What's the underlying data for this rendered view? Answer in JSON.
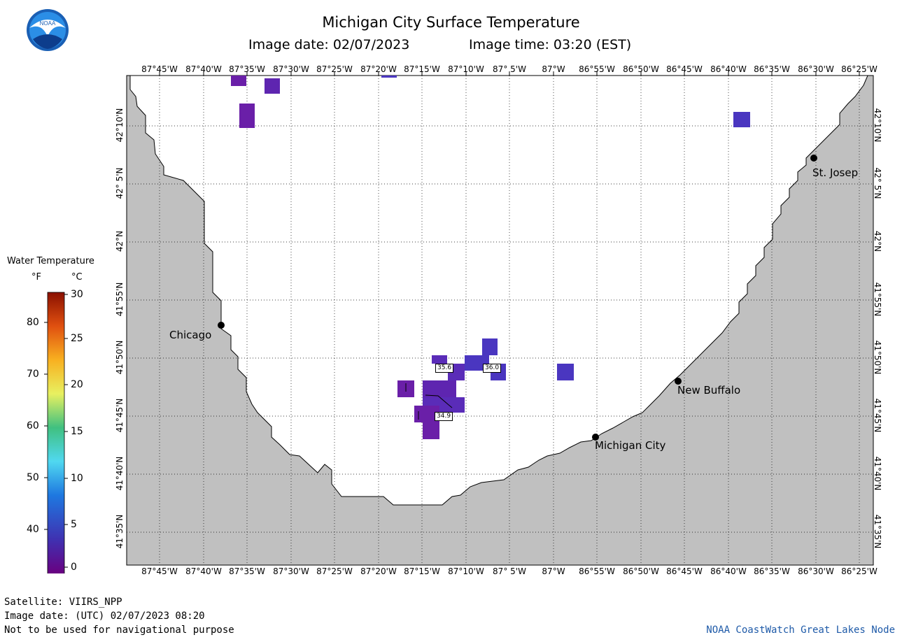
{
  "header": {
    "title": "Michigan City Surface Temperature",
    "image_date_label": "Image date: 02/07/2023",
    "image_time_label": "Image time: 03:20 (EST)"
  },
  "legend": {
    "title": "Water Temperature",
    "unit_f": "°F",
    "unit_c": "°C",
    "f_labels": [
      "80",
      "70",
      "60",
      "50",
      "40"
    ],
    "c_labels": [
      "30",
      "25",
      "20",
      "15",
      "10",
      "5",
      "0"
    ]
  },
  "map": {
    "lon_labels": [
      "87°45'W",
      "87°40'W",
      "87°35'W",
      "87°30'W",
      "87°25'W",
      "87°20'W",
      "87°15'W",
      "87°10'W",
      "87° 5'W",
      "87°W",
      "86°55'W",
      "86°50'W",
      "86°45'W",
      "86°40'W",
      "86°35'W",
      "86°30'W",
      "86°25'W"
    ],
    "lat_labels": [
      "42°10'N",
      "42° 5'N",
      "42°N",
      "41°55'N",
      "41°50'N",
      "41°45'N",
      "41°40'N",
      "41°35'N"
    ],
    "cities": {
      "chicago": "Chicago",
      "st_joseph": "St. Josep",
      "new_buffalo": "New Buffalo",
      "michigan_city": "Michigan City"
    },
    "buoy_values": {
      "a": "35.6",
      "b": "36.0",
      "c": "34.9"
    },
    "colors": {
      "land": "#c0c0c0",
      "water": "#ffffff",
      "sst_cold_purple": "#6a1fa8",
      "sst_violet": "#5a2cb8",
      "sst_blue_violet": "#4a36c0"
    }
  },
  "footer": {
    "satellite": "Satellite: VIIRS_NPP",
    "utc_date": "Image date: (UTC) 02/07/2023  08:20",
    "disclaimer": "Not to be used for navigational purpose",
    "credit": "NOAA CoastWatch Great Lakes Node"
  }
}
